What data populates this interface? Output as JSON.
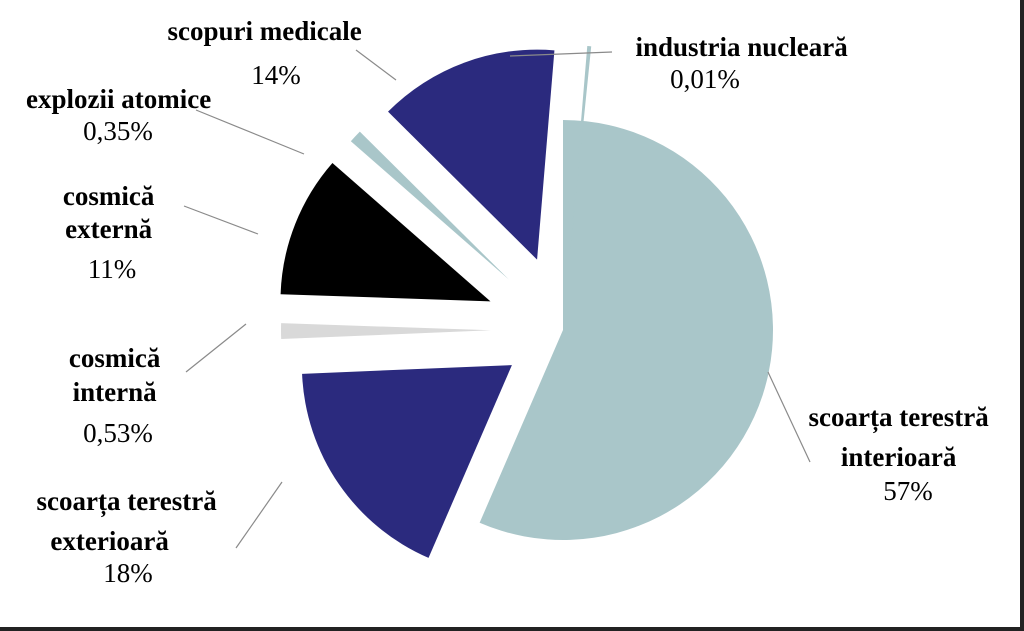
{
  "chart_data": {
    "type": "pie",
    "title": "",
    "exploded": true,
    "slices": [
      {
        "name": "scoarța terestră interioară",
        "value": 57,
        "label": "57%",
        "color": "#a9c6c9"
      },
      {
        "name": "scoarța terestră exterioară",
        "value": 18,
        "label": "18%",
        "color": "#2b2a7e"
      },
      {
        "name": "cosmică internă",
        "value": 0.53,
        "label": "0,53%",
        "color": "#d9d9d9"
      },
      {
        "name": "cosmică externă",
        "value": 11,
        "label": "11%",
        "color": "#000000"
      },
      {
        "name": "explozii atomice",
        "value": 0.35,
        "label": "0,35%",
        "color": "#a9c6c9"
      },
      {
        "name": "scopuri medicale",
        "value": 14,
        "label": "14%",
        "color": "#2b2a7e"
      },
      {
        "name": "industria nucleară",
        "value": 0.01,
        "label": "0,01%",
        "color": "#a9c6c9"
      }
    ]
  }
}
